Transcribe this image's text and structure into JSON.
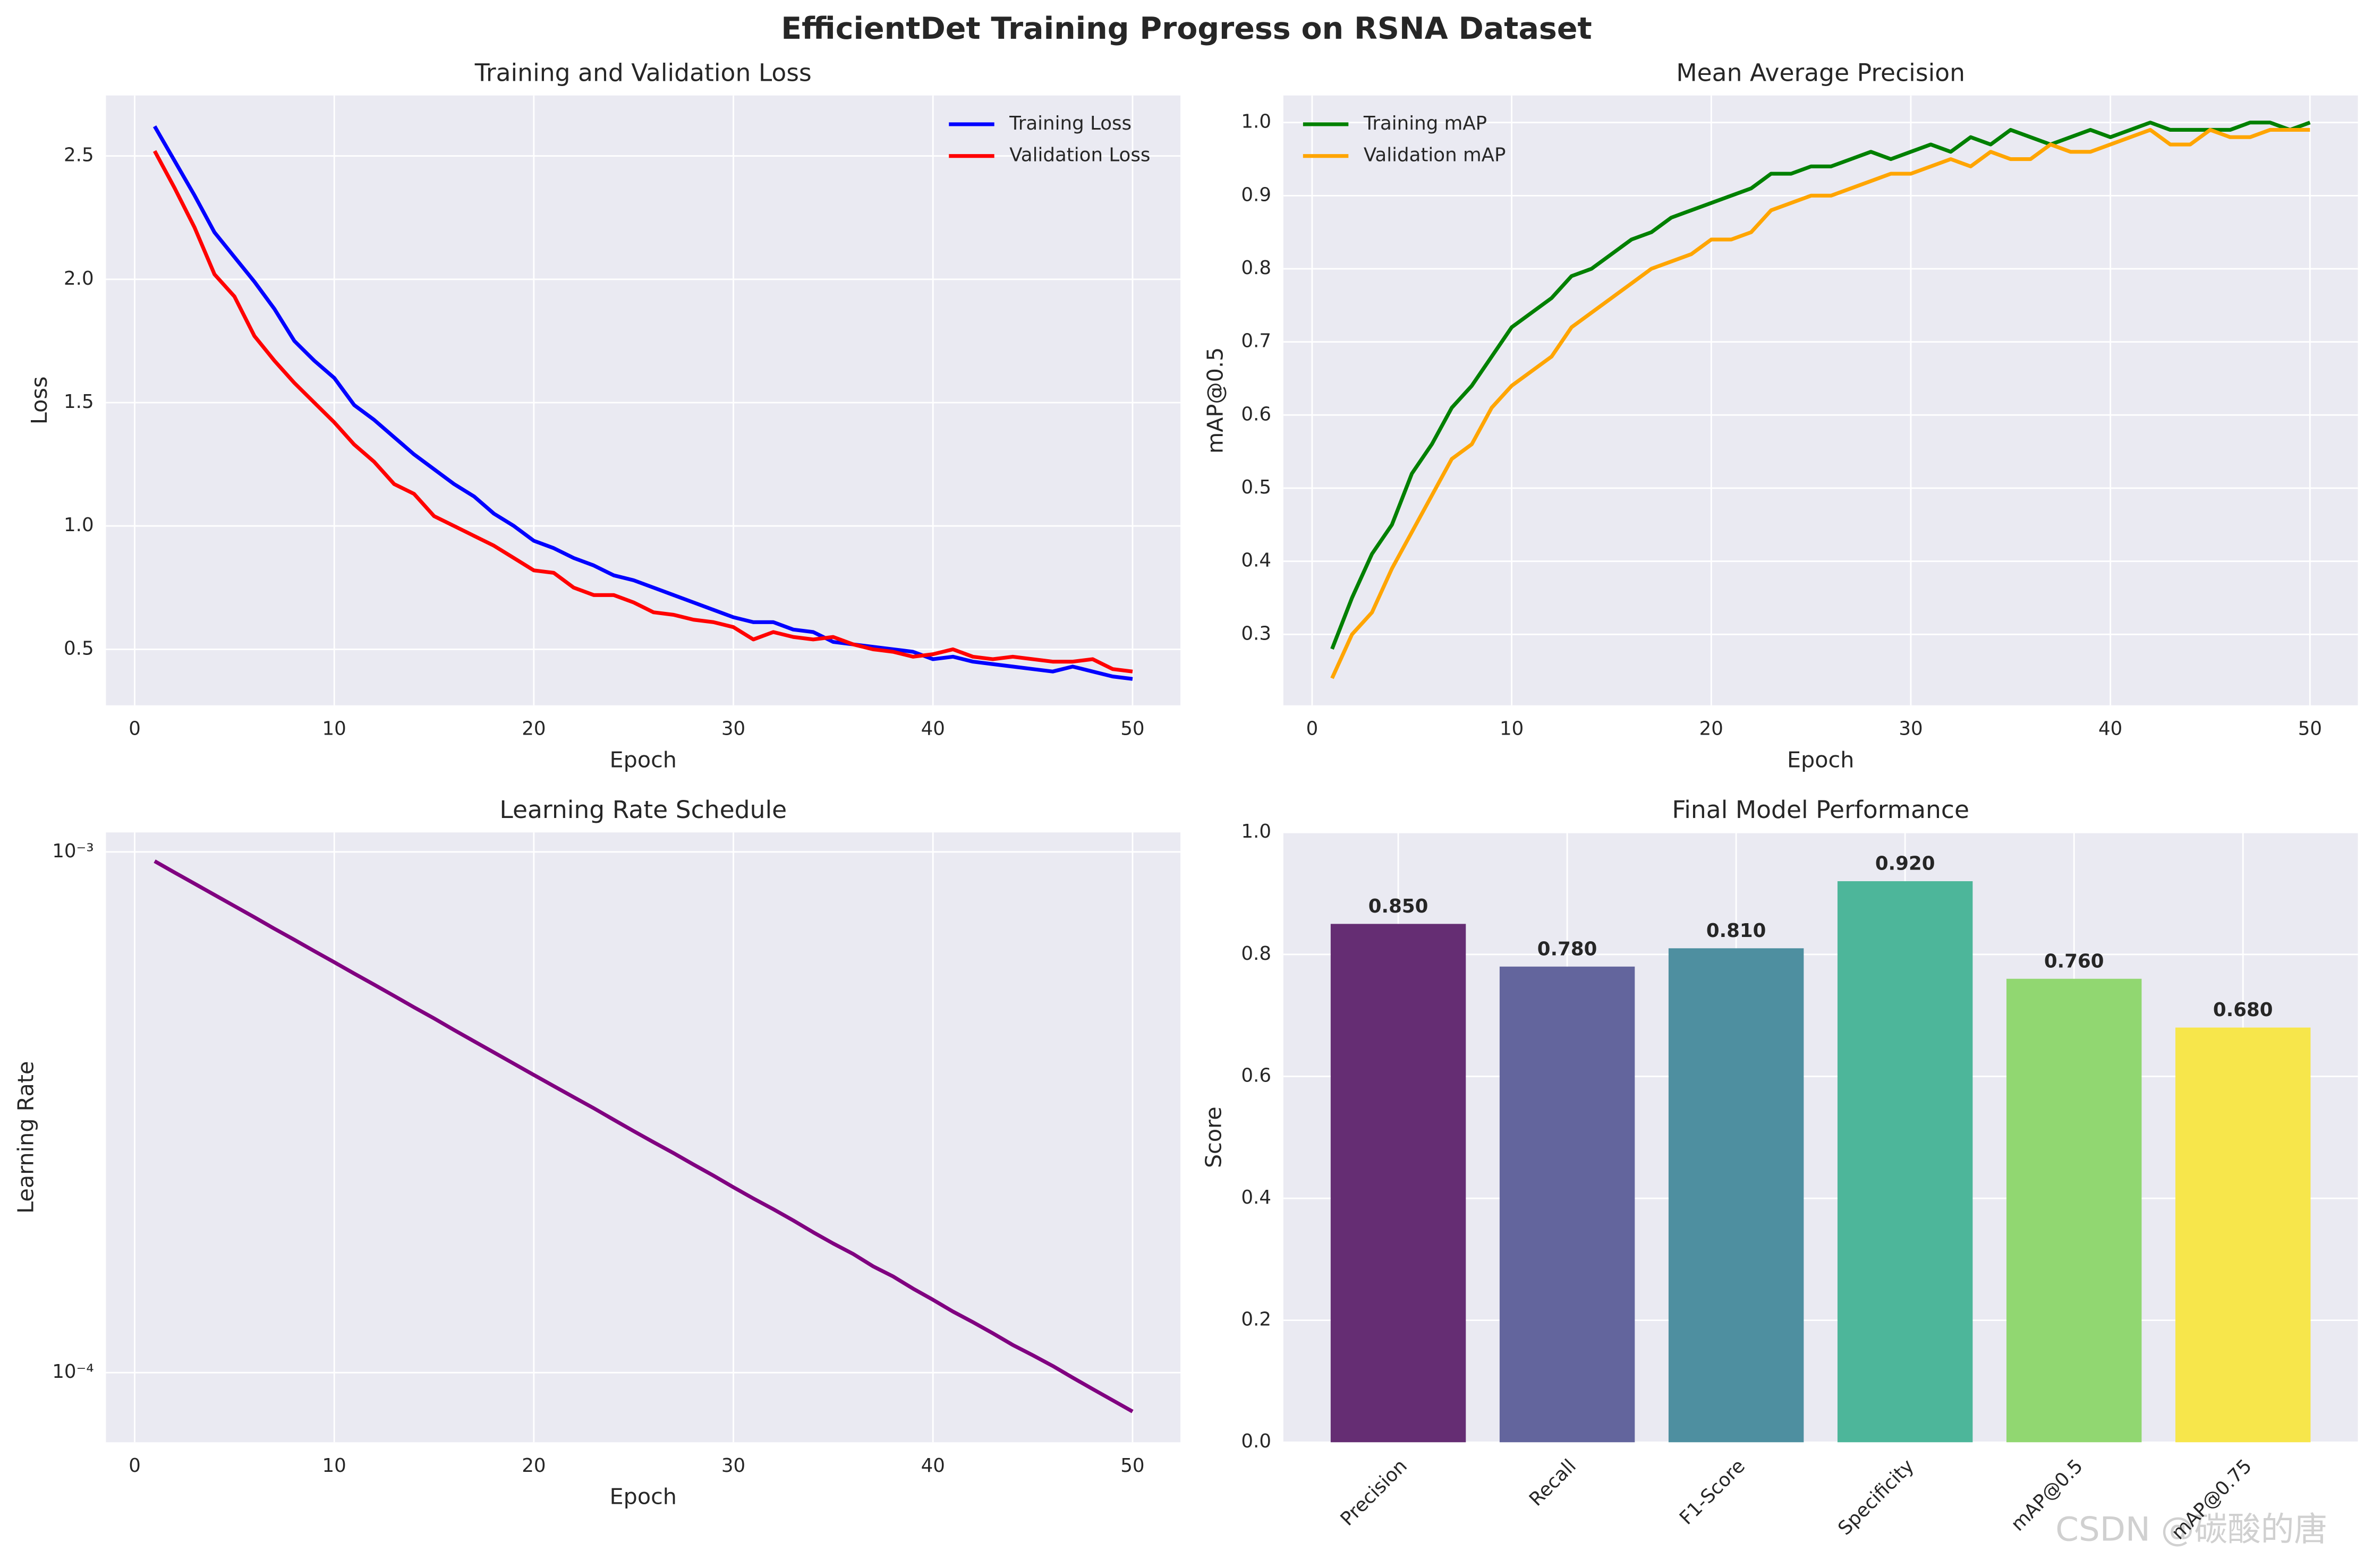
{
  "title": "EfficientDet Training Progress on RSNA Dataset",
  "watermark": "CSDN @碳酸的唐",
  "chart_data": [
    {
      "type": "line",
      "title": "Training and Validation Loss",
      "xlabel": "Epoch",
      "ylabel": "Loss",
      "x": [
        1,
        2,
        3,
        4,
        5,
        6,
        7,
        8,
        9,
        10,
        11,
        12,
        13,
        14,
        15,
        16,
        17,
        18,
        19,
        20,
        21,
        22,
        23,
        24,
        25,
        26,
        27,
        28,
        29,
        30,
        31,
        32,
        33,
        34,
        35,
        36,
        37,
        38,
        39,
        40,
        41,
        42,
        43,
        44,
        45,
        46,
        47,
        48,
        49,
        50
      ],
      "series": [
        {
          "name": "Training Loss",
          "color": "#0000ff",
          "values": [
            2.62,
            2.48,
            2.34,
            2.19,
            2.09,
            1.99,
            1.88,
            1.75,
            1.67,
            1.6,
            1.49,
            1.43,
            1.36,
            1.29,
            1.23,
            1.17,
            1.12,
            1.05,
            1.0,
            0.94,
            0.91,
            0.87,
            0.84,
            0.8,
            0.78,
            0.75,
            0.72,
            0.69,
            0.66,
            0.63,
            0.61,
            0.61,
            0.58,
            0.57,
            0.53,
            0.52,
            0.51,
            0.5,
            0.49,
            0.46,
            0.47,
            0.45,
            0.44,
            0.43,
            0.42,
            0.41,
            0.43,
            0.41,
            0.39,
            0.38
          ]
        },
        {
          "name": "Validation Loss",
          "color": "#ff0000",
          "values": [
            2.52,
            2.37,
            2.21,
            2.02,
            1.93,
            1.77,
            1.67,
            1.58,
            1.5,
            1.42,
            1.33,
            1.26,
            1.17,
            1.13,
            1.04,
            1.0,
            0.96,
            0.92,
            0.87,
            0.82,
            0.81,
            0.75,
            0.72,
            0.72,
            0.69,
            0.65,
            0.64,
            0.62,
            0.61,
            0.59,
            0.54,
            0.57,
            0.55,
            0.54,
            0.55,
            0.52,
            0.5,
            0.49,
            0.47,
            0.48,
            0.5,
            0.47,
            0.46,
            0.47,
            0.46,
            0.45,
            0.45,
            0.46,
            0.42,
            0.41
          ]
        }
      ],
      "xlim": [
        -1.44,
        52.4
      ],
      "xticks": [
        0,
        10,
        20,
        30,
        40,
        50
      ],
      "ylim": [
        0.273,
        2.745
      ],
      "yticks": [
        0.5,
        {
          "value": 1.0,
          "label": "1.0"
        },
        1.5,
        {
          "value": 2.0,
          "label": "2.0"
        },
        2.5
      ],
      "grid": true,
      "legend": "upper right"
    },
    {
      "type": "line",
      "title": "Mean Average Precision",
      "xlabel": "Epoch",
      "ylabel": "mAP@0.5",
      "x": [
        1,
        2,
        3,
        4,
        5,
        6,
        7,
        8,
        9,
        10,
        11,
        12,
        13,
        14,
        15,
        16,
        17,
        18,
        19,
        20,
        21,
        22,
        23,
        24,
        25,
        26,
        27,
        28,
        29,
        30,
        31,
        32,
        33,
        34,
        35,
        36,
        37,
        38,
        39,
        40,
        41,
        42,
        43,
        44,
        45,
        46,
        47,
        48,
        49,
        50
      ],
      "series": [
        {
          "name": "Training mAP",
          "color": "#008000",
          "values": [
            0.28,
            0.35,
            0.41,
            0.45,
            0.52,
            0.56,
            0.61,
            0.64,
            0.68,
            0.72,
            0.74,
            0.76,
            0.79,
            0.8,
            0.82,
            0.84,
            0.85,
            0.87,
            0.88,
            0.89,
            0.9,
            0.91,
            0.93,
            0.93,
            0.94,
            0.94,
            0.95,
            0.96,
            0.95,
            0.96,
            0.97,
            0.96,
            0.98,
            0.97,
            0.99,
            0.98,
            0.97,
            0.98,
            0.99,
            0.98,
            0.99,
            1.0,
            0.99,
            0.99,
            0.99,
            0.99,
            1.0,
            1.0,
            0.99,
            1.0
          ]
        },
        {
          "name": "Validation mAP",
          "color": "#ffa500",
          "values": [
            0.24,
            0.3,
            0.33,
            0.39,
            0.44,
            0.49,
            0.54,
            0.56,
            0.61,
            0.64,
            0.66,
            0.68,
            0.72,
            0.74,
            0.76,
            0.78,
            0.8,
            0.81,
            0.82,
            0.84,
            0.84,
            0.85,
            0.88,
            0.89,
            0.9,
            0.9,
            0.91,
            0.92,
            0.93,
            0.93,
            0.94,
            0.95,
            0.94,
            0.96,
            0.95,
            0.95,
            0.97,
            0.96,
            0.96,
            0.97,
            0.98,
            0.99,
            0.97,
            0.97,
            0.99,
            0.98,
            0.98,
            0.99,
            0.99,
            0.99
          ]
        }
      ],
      "xlim": [
        -1.44,
        52.4
      ],
      "xticks": [
        0,
        10,
        20,
        30,
        40,
        50
      ],
      "ylim": [
        0.203,
        1.037
      ],
      "yticks": [
        0.3,
        0.4,
        0.5,
        0.6,
        0.7,
        0.8,
        0.9,
        {
          "value": 1.0,
          "label": "1.0"
        }
      ],
      "grid": true,
      "legend": "upper left"
    },
    {
      "type": "line",
      "title": "Learning Rate Schedule",
      "xlabel": "Epoch",
      "ylabel": "Learning Rate",
      "x": [
        1,
        2,
        3,
        4,
        5,
        6,
        7,
        8,
        9,
        10,
        11,
        12,
        13,
        14,
        15,
        16,
        17,
        18,
        19,
        20,
        21,
        22,
        23,
        24,
        25,
        26,
        27,
        28,
        29,
        30,
        31,
        32,
        33,
        34,
        35,
        36,
        37,
        38,
        39,
        40,
        41,
        42,
        43,
        44,
        45,
        46,
        47,
        48,
        49,
        50
      ],
      "series": [
        {
          "name": "Learning Rate",
          "color": "#800080",
          "values": [
            0.00096,
            0.000913,
            0.000869,
            0.000827,
            0.000787,
            0.000749,
            0.000712,
            0.000678,
            0.000645,
            0.000614,
            0.000584,
            0.000556,
            0.000529,
            0.000503,
            0.000479,
            0.000455,
            0.000433,
            0.000412,
            0.000392,
            0.000373,
            0.000355,
            0.000338,
            0.000322,
            0.000306,
            0.000291,
            0.000277,
            0.000264,
            0.000251,
            0.000239,
            0.000227,
            0.000216,
            0.000206,
            0.000196,
            0.000186,
            0.000177,
            0.000169,
            0.00016,
            0.000153,
            0.000145,
            0.000138,
            0.000131,
            0.000125,
            0.000119,
            0.000113,
            0.000108,
            0.000103,
            9.78e-05,
            9.3e-05,
            8.85e-05,
            8.42e-05
          ]
        }
      ],
      "xlim": [
        -1.44,
        52.4
      ],
      "xticks": [
        0,
        10,
        20,
        30,
        40,
        50
      ],
      "ylim": [
        7.35e-05,
        0.00109
      ],
      "yscale": "log",
      "yticks": [
        {
          "value": 0.001,
          "label": "10⁻³"
        },
        {
          "value": 0.0001,
          "label": "10⁻⁴"
        }
      ],
      "grid": true
    },
    {
      "type": "bar",
      "title": "Final Model Performance",
      "ylabel": "Score",
      "categories": [
        "Precision",
        "Recall",
        "F1-Score",
        "Specificity",
        "mAP@0.5",
        "mAP@0.75"
      ],
      "values": [
        0.85,
        0.78,
        0.81,
        0.92,
        0.76,
        0.68
      ],
      "value_labels": [
        "0.850",
        "0.780",
        "0.810",
        "0.920",
        "0.760",
        "0.680"
      ],
      "colors": [
        "#652d73",
        "#63659d",
        "#4e8fa0",
        "#4db69a",
        "#91d771",
        "#f7e64b"
      ],
      "ylim": [
        0,
        1
      ],
      "yticks": [
        {
          "value": 0,
          "label": "0.0"
        },
        0.2,
        0.4,
        0.6,
        0.8,
        {
          "value": 1,
          "label": "1.0"
        }
      ],
      "grid": true
    }
  ]
}
